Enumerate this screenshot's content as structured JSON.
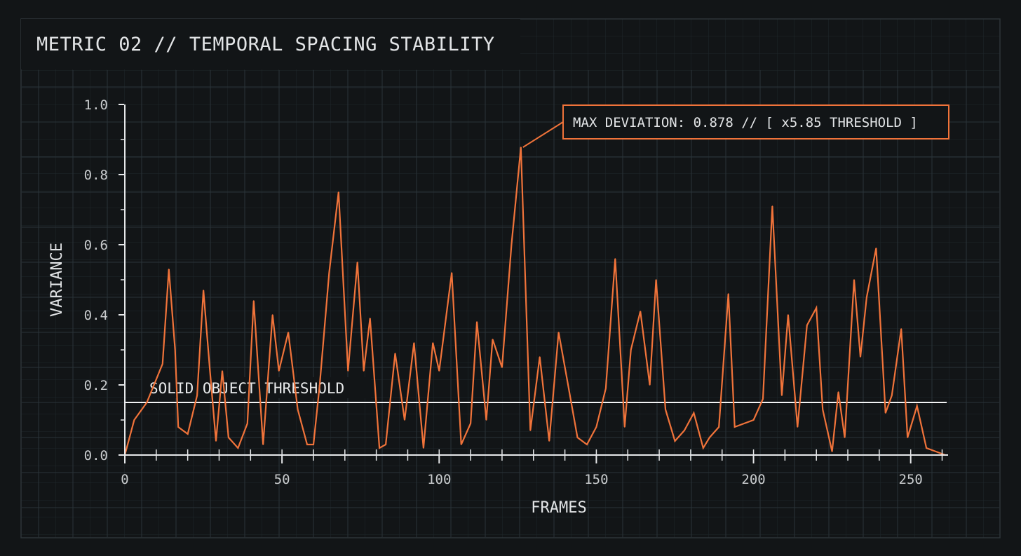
{
  "colors": {
    "background": "#121517",
    "grid": "#2a3338",
    "axis": "#e6e8ea",
    "series": "#f0733a",
    "threshold_line": "#f2f3f4",
    "annotation_border": "#f0733a"
  },
  "chart_data": {
    "type": "line",
    "title": "METRIC 02 // TEMPORAL SPACING STABILITY",
    "xlabel": "FRAMES",
    "ylabel": "VARIANCE",
    "xlim": [
      0,
      261
    ],
    "ylim": [
      0,
      1.0
    ],
    "x_ticks": [
      0,
      50,
      100,
      150,
      200,
      250
    ],
    "y_ticks": [
      "0.0",
      "0.2",
      "0.4",
      "0.6",
      "0.8",
      "1.0"
    ],
    "y_tick_values": [
      0,
      0.2,
      0.4,
      0.6,
      0.8,
      1.0
    ],
    "grid": true,
    "threshold": {
      "label": "SOLID OBJECT THRESHOLD",
      "value": 0.15
    },
    "annotation": {
      "text": "MAX DEVIATION: 0.878 // [ x5.85 THRESHOLD ]",
      "x": 126,
      "y": 0.878
    },
    "series": [
      {
        "x": [
          0,
          3,
          7,
          12,
          14,
          16,
          17,
          20,
          23,
          25,
          27,
          29,
          31,
          33,
          36,
          39,
          41,
          44,
          47,
          49,
          52,
          55,
          58,
          60,
          62,
          65,
          68,
          71,
          74,
          76,
          78,
          81,
          83,
          86,
          89,
          92,
          95,
          98,
          100,
          104,
          107,
          110,
          112,
          115,
          117,
          120,
          123,
          126,
          129,
          132,
          135,
          138,
          141,
          144,
          147,
          150,
          153,
          156,
          159,
          161,
          164,
          167,
          169,
          172,
          175,
          178,
          181,
          184,
          186,
          189,
          192,
          194,
          197,
          200,
          203,
          206,
          209,
          211,
          214,
          217,
          220,
          222,
          225,
          227,
          229,
          232,
          234,
          236,
          239,
          242,
          244,
          247,
          249,
          252,
          255,
          258,
          261
        ],
        "y": [
          0.0,
          0.1,
          0.15,
          0.26,
          0.53,
          0.3,
          0.08,
          0.06,
          0.17,
          0.47,
          0.25,
          0.04,
          0.24,
          0.05,
          0.02,
          0.09,
          0.44,
          0.03,
          0.4,
          0.24,
          0.35,
          0.13,
          0.03,
          0.03,
          0.2,
          0.52,
          0.75,
          0.24,
          0.55,
          0.24,
          0.39,
          0.02,
          0.03,
          0.29,
          0.1,
          0.32,
          0.02,
          0.32,
          0.24,
          0.52,
          0.03,
          0.09,
          0.38,
          0.1,
          0.33,
          0.25,
          0.6,
          0.878,
          0.07,
          0.28,
          0.04,
          0.35,
          0.2,
          0.05,
          0.03,
          0.08,
          0.19,
          0.56,
          0.08,
          0.3,
          0.41,
          0.2,
          0.5,
          0.13,
          0.04,
          0.07,
          0.12,
          0.02,
          0.05,
          0.08,
          0.46,
          0.08,
          0.09,
          0.1,
          0.16,
          0.71,
          0.17,
          0.4,
          0.08,
          0.37,
          0.42,
          0.13,
          0.01,
          0.18,
          0.05,
          0.5,
          0.28,
          0.45,
          0.59,
          0.12,
          0.17,
          0.36,
          0.05,
          0.14,
          0.02,
          0.01,
          0.0
        ]
      }
    ]
  }
}
